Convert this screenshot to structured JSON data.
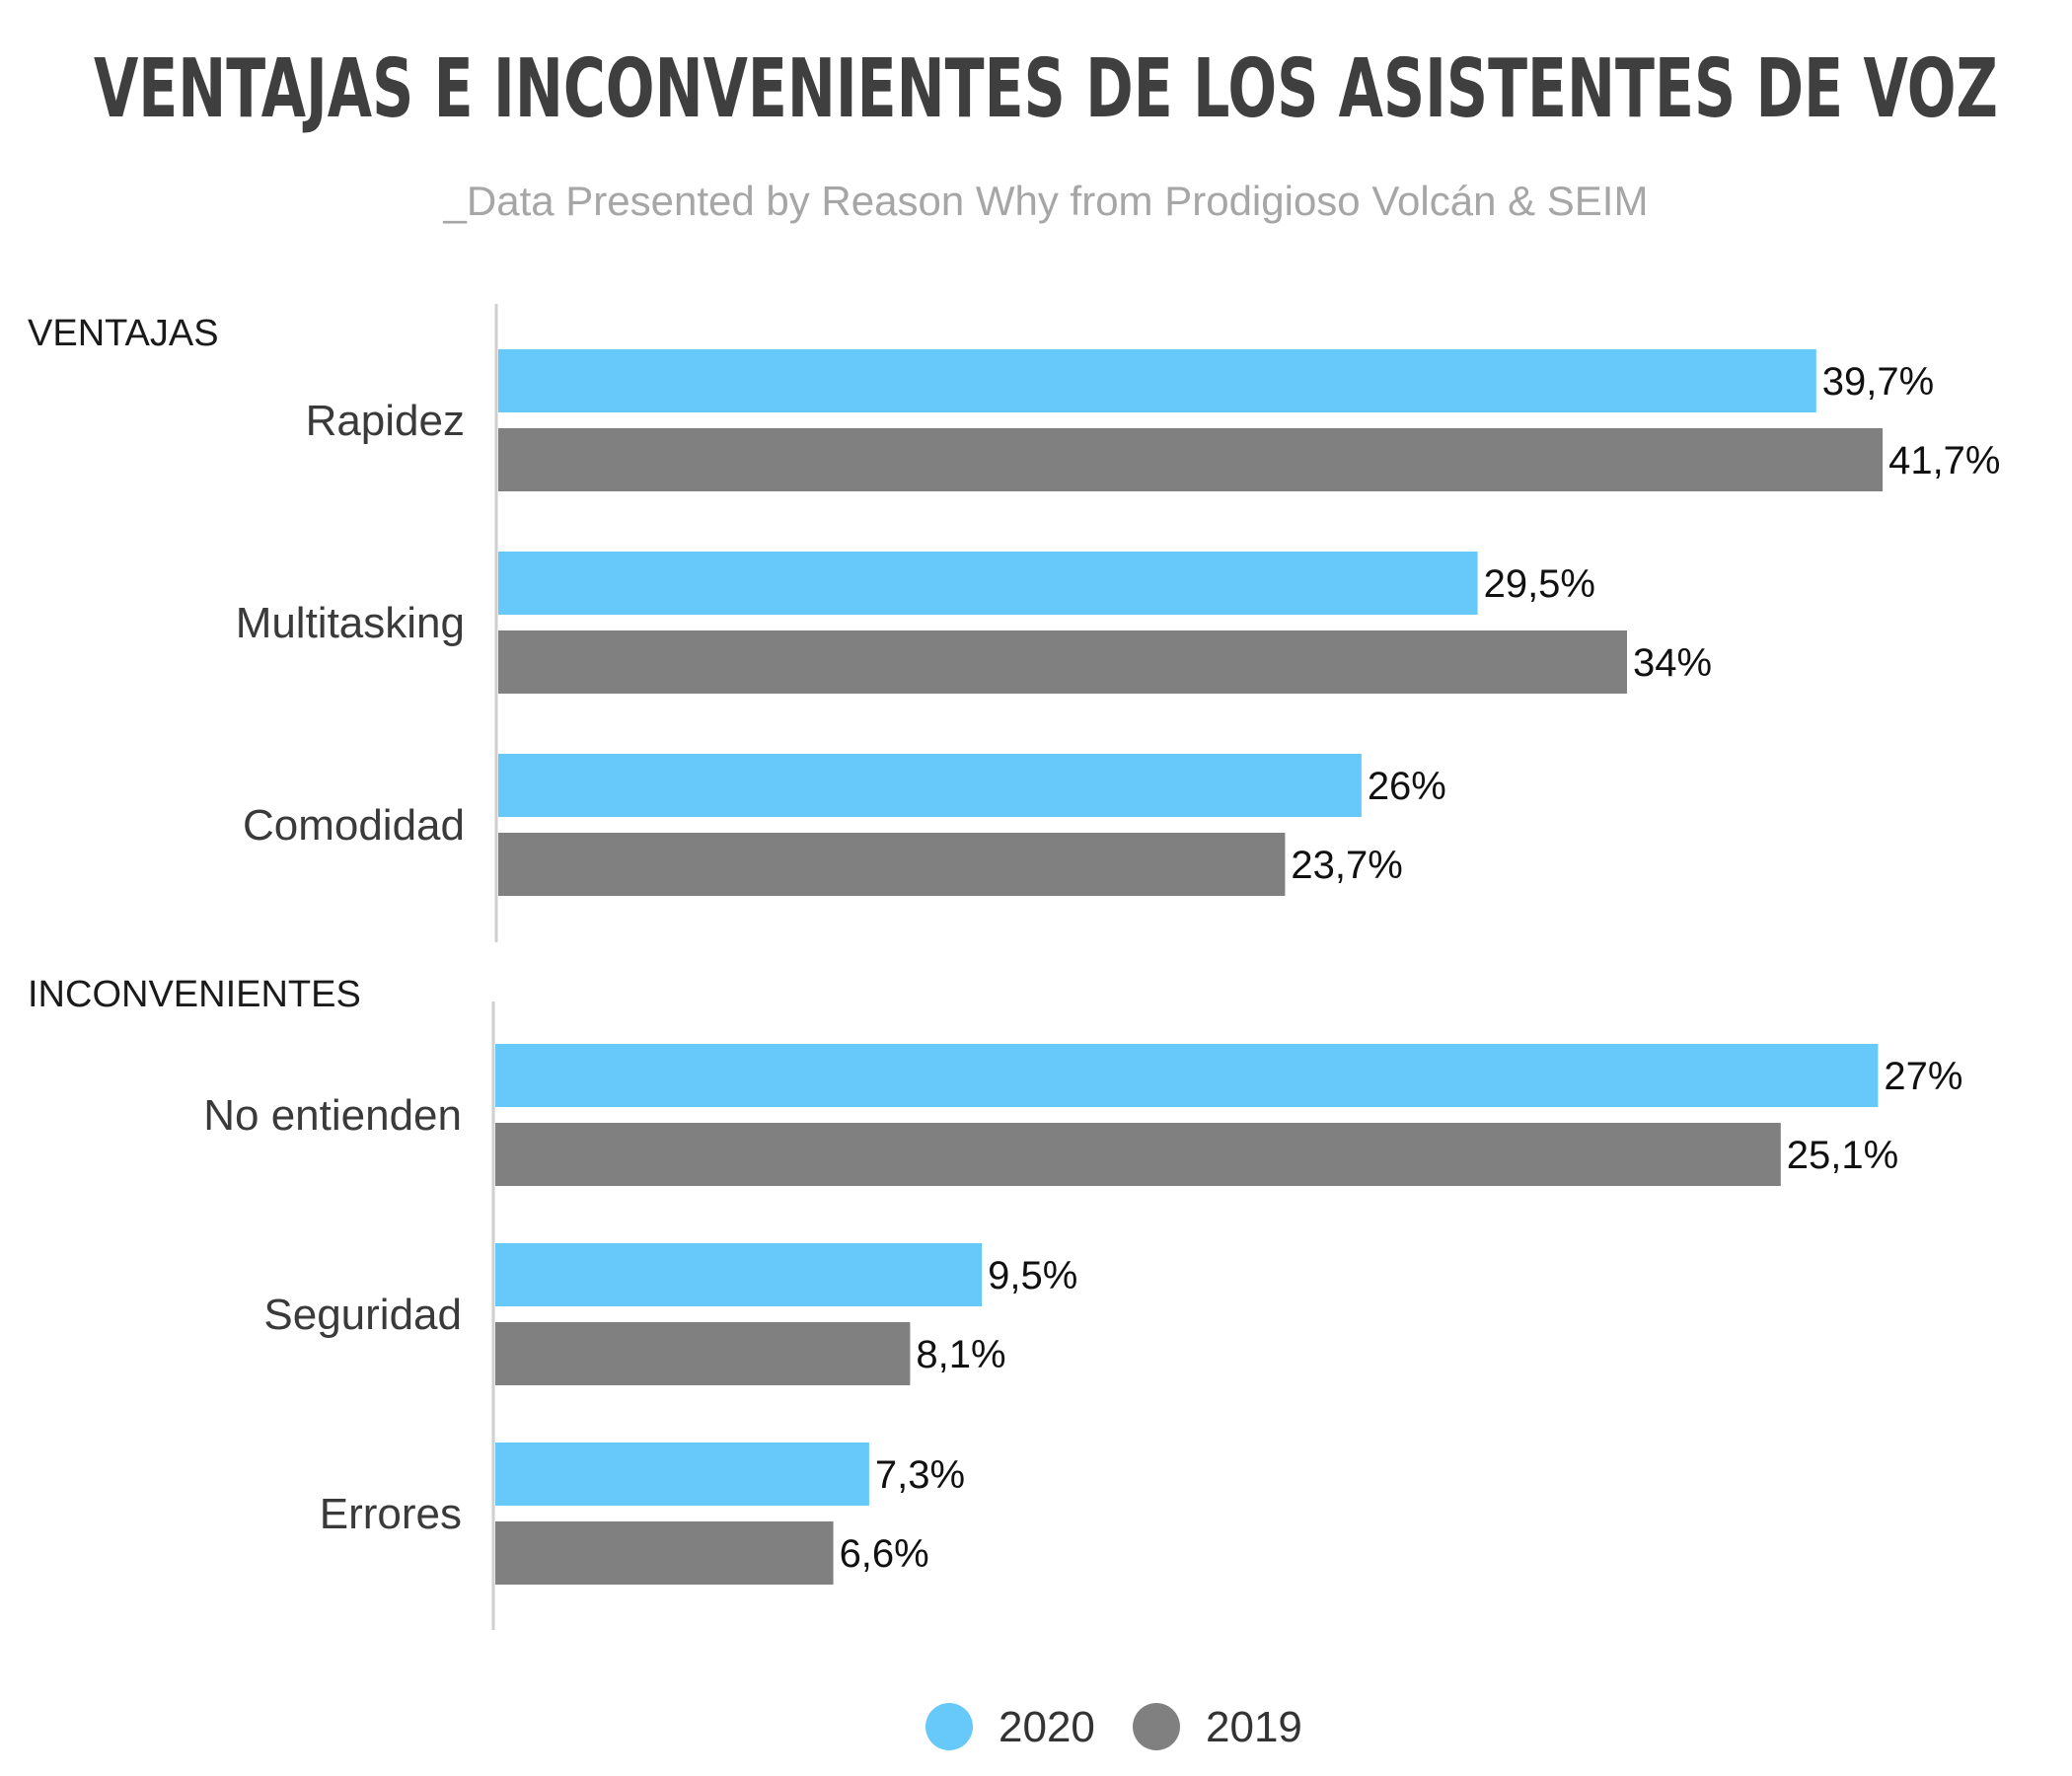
{
  "chart_data": {
    "type": "bar",
    "orientation": "horizontal",
    "title": "VENTAJAS E INCONVENIENTES DE LOS ASISTENTES DE VOZ",
    "subtitle": "_Data Presented by Reason Why from Prodigioso Volcán & SEIM",
    "legend_position": "bottom",
    "grid": false,
    "series_names": [
      "2020",
      "2019"
    ],
    "colors": {
      "2020": "#66c9fa",
      "2019": "#808080"
    },
    "groups": [
      {
        "label": "VENTAJAS",
        "xlim": [
          0,
          42.5
        ],
        "categories": [
          {
            "name": "Rapidez",
            "values": [
              39.7,
              41.7
            ],
            "labels": [
              "39,7%",
              "41,7%"
            ]
          },
          {
            "name": "Multitasking",
            "values": [
              29.5,
              34
            ],
            "labels": [
              "29,5%",
              "34%"
            ]
          },
          {
            "name": "Comodidad",
            "values": [
              26,
              23.7
            ],
            "labels": [
              "26%",
              "23,7%"
            ]
          }
        ]
      },
      {
        "label": "INCONVENIENTES",
        "xlim": [
          0,
          27.3
        ],
        "categories": [
          {
            "name": "No entienden",
            "values": [
              27,
              25.1
            ],
            "labels": [
              "27%",
              "25,1%"
            ]
          },
          {
            "name": "Seguridad",
            "values": [
              9.5,
              8.1
            ],
            "labels": [
              "9,5%",
              "8,1%"
            ]
          },
          {
            "name": "Errores",
            "values": [
              7.3,
              6.6
            ],
            "labels": [
              "7,3%",
              "6,6%"
            ]
          }
        ]
      }
    ]
  }
}
